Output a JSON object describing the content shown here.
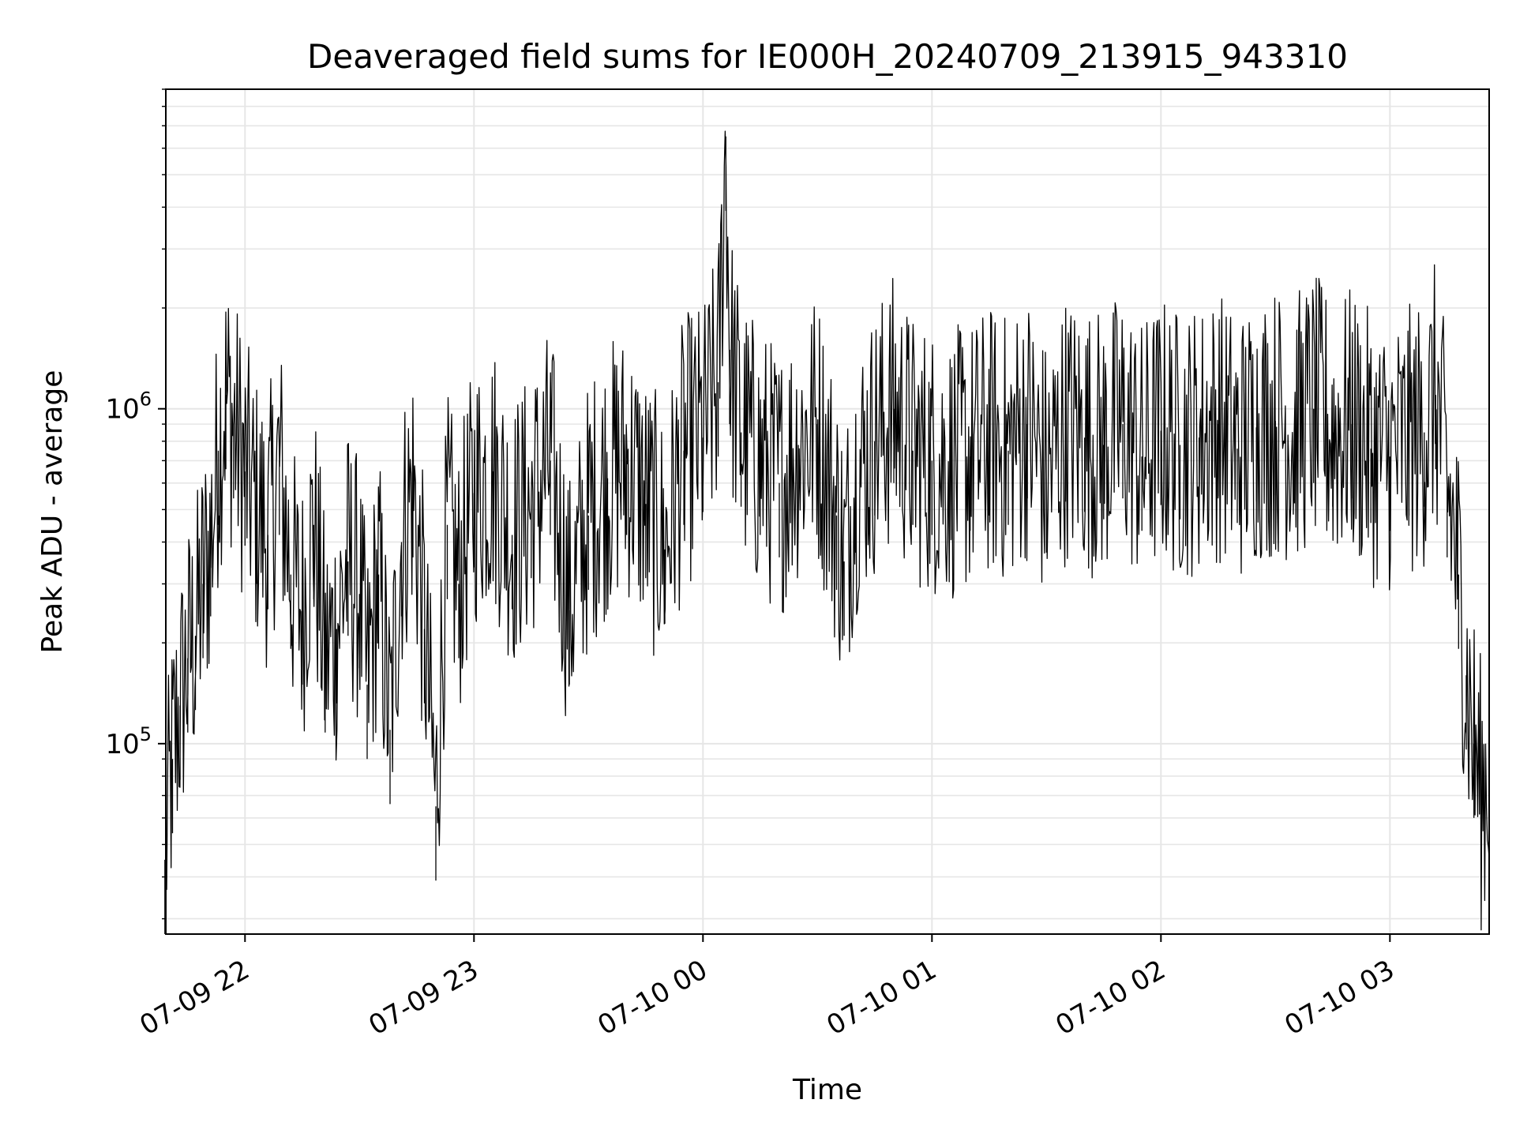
{
  "chart_data": {
    "type": "line",
    "title": "Deaveraged field sums for IE000H_20240709_213915_943310",
    "xlabel": "Time",
    "ylabel": "Peak ADU - average",
    "yscale": "log",
    "ylim": [
      27000,
      9000000
    ],
    "xlim": [
      "2024-07-09 21:39:15",
      "2024-07-10 03:26:00"
    ],
    "x_ticks": [
      {
        "value": "2024-07-09 22:00",
        "label": "07-09 22"
      },
      {
        "value": "2024-07-09 23:00",
        "label": "07-09 23"
      },
      {
        "value": "2024-07-10 00:00",
        "label": "07-10 00"
      },
      {
        "value": "2024-07-10 01:00",
        "label": "07-10 01"
      },
      {
        "value": "2024-07-10 02:00",
        "label": "07-10 02"
      },
      {
        "value": "2024-07-10 03:00",
        "label": "07-10 03"
      }
    ],
    "y_ticks": [
      {
        "value": 100000,
        "base": "10",
        "exp": "5"
      },
      {
        "value": 1000000,
        "base": "10",
        "exp": "6"
      }
    ],
    "grid": true,
    "line_color": "#000000",
    "grid_color": "#e6e6e6",
    "series": [
      {
        "x": [
          "2024-07-09 21:39",
          "2024-07-09 21:41",
          "2024-07-09 21:43",
          "2024-07-09 21:45",
          "2024-07-09 21:47",
          "2024-07-09 21:49",
          "2024-07-09 21:51",
          "2024-07-09 21:53",
          "2024-07-09 21:55",
          "2024-07-09 21:57",
          "2024-07-09 22:00",
          "2024-07-09 22:03",
          "2024-07-09 22:06",
          "2024-07-09 22:09",
          "2024-07-09 22:12",
          "2024-07-09 22:15",
          "2024-07-09 22:18",
          "2024-07-09 22:21",
          "2024-07-09 22:24",
          "2024-07-09 22:27",
          "2024-07-09 22:30",
          "2024-07-09 22:32",
          "2024-07-09 22:35",
          "2024-07-09 22:38",
          "2024-07-09 22:41",
          "2024-07-09 22:44",
          "2024-07-09 22:47",
          "2024-07-09 22:50",
          "2024-07-09 22:53",
          "2024-07-09 22:56",
          "2024-07-09 23:00",
          "2024-07-09 23:05",
          "2024-07-09 23:10",
          "2024-07-09 23:15",
          "2024-07-09 23:20",
          "2024-07-09 23:25",
          "2024-07-09 23:30",
          "2024-07-09 23:35",
          "2024-07-09 23:40",
          "2024-07-09 23:45",
          "2024-07-09 23:50",
          "2024-07-09 23:55",
          "2024-07-10 00:00",
          "2024-07-10 00:04",
          "2024-07-10 00:06",
          "2024-07-10 00:07",
          "2024-07-10 00:10",
          "2024-07-10 00:15",
          "2024-07-10 00:20",
          "2024-07-10 00:25",
          "2024-07-10 00:30",
          "2024-07-10 00:35",
          "2024-07-10 00:37",
          "2024-07-10 00:40",
          "2024-07-10 00:45",
          "2024-07-10 00:50",
          "2024-07-10 00:55",
          "2024-07-10 01:00",
          "2024-07-10 01:05",
          "2024-07-10 01:10",
          "2024-07-10 01:15",
          "2024-07-10 01:20",
          "2024-07-10 01:25",
          "2024-07-10 01:30",
          "2024-07-10 01:35",
          "2024-07-10 01:40",
          "2024-07-10 01:45",
          "2024-07-10 01:50",
          "2024-07-10 01:55",
          "2024-07-10 02:00",
          "2024-07-10 02:05",
          "2024-07-10 02:10",
          "2024-07-10 02:15",
          "2024-07-10 02:20",
          "2024-07-10 02:25",
          "2024-07-10 02:30",
          "2024-07-10 02:35",
          "2024-07-10 02:40",
          "2024-07-10 02:45",
          "2024-07-10 02:50",
          "2024-07-10 02:55",
          "2024-07-10 03:00",
          "2024-07-10 03:05",
          "2024-07-10 03:09",
          "2024-07-10 03:12",
          "2024-07-10 03:15",
          "2024-07-10 03:18",
          "2024-07-10 03:20",
          "2024-07-10 03:22",
          "2024-07-10 03:24",
          "2024-07-10 03:26"
        ],
        "y": [
          45000,
          90000,
          130000,
          180000,
          210000,
          300000,
          400000,
          750000,
          1100000,
          900000,
          650000,
          500000,
          420000,
          700000,
          320000,
          250000,
          450000,
          180000,
          220000,
          350000,
          280000,
          150000,
          320000,
          110000,
          400000,
          600000,
          220000,
          65000,
          450000,
          300000,
          560000,
          650000,
          420000,
          520000,
          700000,
          250000,
          480000,
          620000,
          700000,
          520000,
          380000,
          750000,
          820000,
          1200000,
          6500000,
          1500000,
          850000,
          700000,
          600000,
          780000,
          900000,
          480000,
          350000,
          620000,
          800000,
          1000000,
          750000,
          700000,
          680000,
          720000,
          800000,
          750000,
          900000,
          620000,
          880000,
          820000,
          780000,
          900000,
          720000,
          860000,
          780000,
          820000,
          900000,
          760000,
          880000,
          920000,
          870000,
          1000000,
          850000,
          900000,
          760000,
          720000,
          800000,
          850000,
          1100000,
          600000,
          320000,
          160000,
          100000,
          70000,
          85000
        ]
      }
    ]
  }
}
